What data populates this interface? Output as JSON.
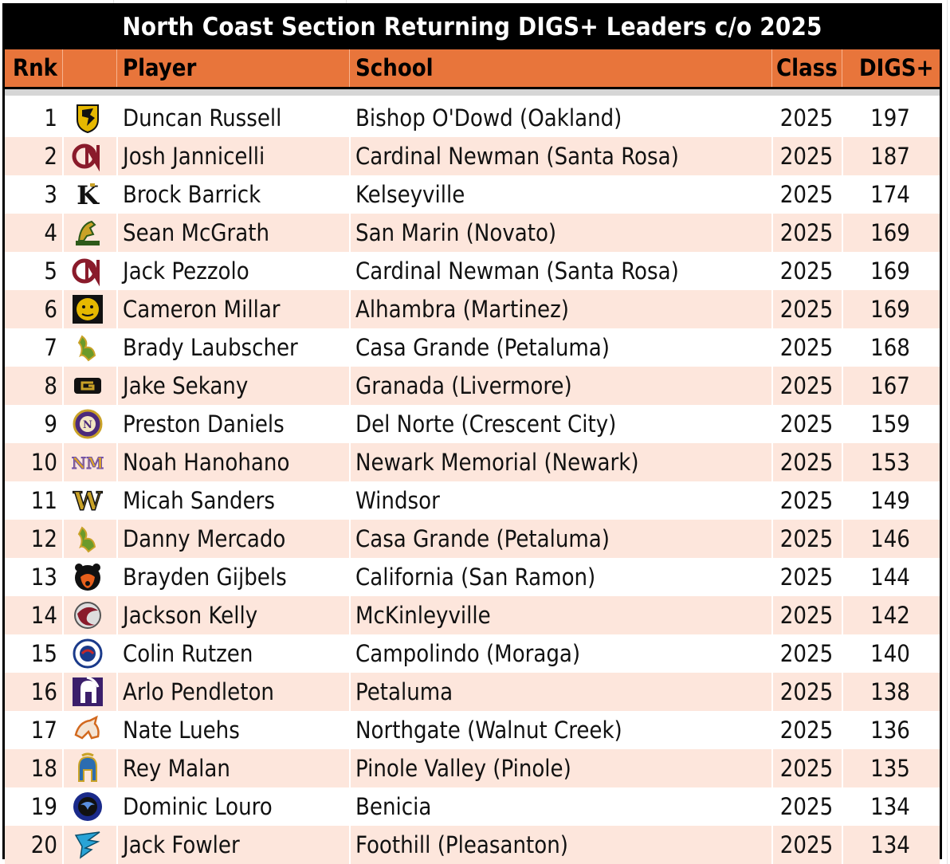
{
  "title": "North Coast Section Returning DIGS+ Leaders c/o 2025",
  "headers": {
    "rank": "Rnk",
    "logo": "",
    "player": "Player",
    "school": "School",
    "class": "Class",
    "digs": "DIGS+"
  },
  "colors": {
    "header_bg": "#e8753b",
    "title_bg": "#000000",
    "stripe": "#fde6dc"
  },
  "rows": [
    {
      "rank": "1",
      "player": "Duncan Russell",
      "school": "Bishop O'Dowd (Oakland)",
      "class": "2025",
      "digs": "197",
      "logo": "dragon-shield-logo"
    },
    {
      "rank": "2",
      "player": "Josh Jannicelli",
      "school": "Cardinal Newman (Santa Rosa)",
      "class": "2025",
      "digs": "187",
      "logo": "cn-monogram-logo"
    },
    {
      "rank": "3",
      "player": "Brock Barrick",
      "school": "Kelseyville",
      "class": "2025",
      "digs": "174",
      "logo": "k-letter-logo"
    },
    {
      "rank": "4",
      "player": "Sean McGrath",
      "school": "San Marin (Novato)",
      "class": "2025",
      "digs": "169",
      "logo": "mustang-logo"
    },
    {
      "rank": "5",
      "player": "Jack Pezzolo",
      "school": "Cardinal Newman (Santa Rosa)",
      "class": "2025",
      "digs": "169",
      "logo": "cn-monogram-logo"
    },
    {
      "rank": "6",
      "player": "Cameron Millar",
      "school": "Alhambra (Martinez)",
      "class": "2025",
      "digs": "169",
      "logo": "bulldog-logo"
    },
    {
      "rank": "7",
      "player": "Brady Laubscher",
      "school": "Casa Grande (Petaluma)",
      "class": "2025",
      "digs": "168",
      "logo": "gaucho-logo"
    },
    {
      "rank": "8",
      "player": "Jake Sekany",
      "school": "Granada (Livermore)",
      "class": "2025",
      "digs": "167",
      "logo": "g-letter-logo"
    },
    {
      "rank": "9",
      "player": "Preston Daniels",
      "school": "Del Norte (Crescent City)",
      "class": "2025",
      "digs": "159",
      "logo": "dn-circle-logo"
    },
    {
      "rank": "10",
      "player": "Noah Hanohano",
      "school": "Newark Memorial (Newark)",
      "class": "2025",
      "digs": "153",
      "logo": "nm-monogram-logo"
    },
    {
      "rank": "11",
      "player": "Micah Sanders",
      "school": "Windsor",
      "class": "2025",
      "digs": "149",
      "logo": "w-letter-logo"
    },
    {
      "rank": "12",
      "player": "Danny Mercado",
      "school": "Casa Grande (Petaluma)",
      "class": "2025",
      "digs": "146",
      "logo": "gaucho-logo"
    },
    {
      "rank": "13",
      "player": "Brayden Gijbels",
      "school": "California (San Ramon)",
      "class": "2025",
      "digs": "144",
      "logo": "grizzly-logo"
    },
    {
      "rank": "14",
      "player": "Jackson Kelly",
      "school": "McKinleyville",
      "class": "2025",
      "digs": "142",
      "logo": "panther-swirl-logo"
    },
    {
      "rank": "15",
      "player": "Colin Rutzen",
      "school": "Campolindo (Moraga)",
      "class": "2025",
      "digs": "140",
      "logo": "cougar-circle-logo"
    },
    {
      "rank": "16",
      "player": "Arlo Pendleton",
      "school": "Petaluma",
      "class": "2025",
      "digs": "138",
      "logo": "trojan-helmet-logo"
    },
    {
      "rank": "17",
      "player": "Nate Luehs",
      "school": "Northgate (Walnut Creek)",
      "class": "2025",
      "digs": "136",
      "logo": "bronco-logo"
    },
    {
      "rank": "18",
      "player": "Rey Malan",
      "school": "Pinole Valley (Pinole)",
      "class": "2025",
      "digs": "135",
      "logo": "spartan-helmet-logo"
    },
    {
      "rank": "19",
      "player": "Dominic Louro",
      "school": "Benicia",
      "class": "2025",
      "digs": "134",
      "logo": "panther-circle-logo"
    },
    {
      "rank": "20",
      "player": "Jack Fowler",
      "school": "Foothill (Pleasanton)",
      "class": "2025",
      "digs": "134",
      "logo": "falcon-logo"
    }
  ]
}
